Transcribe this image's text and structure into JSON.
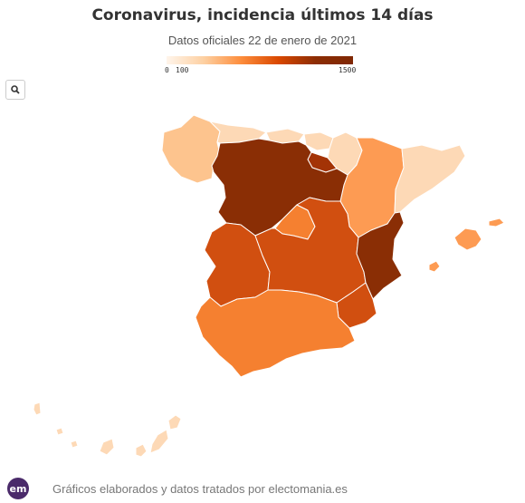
{
  "title": "Coronavirus, incidencia últimos 14 días",
  "subtitle": "Datos oficiales 22 de enero de 2021",
  "legend": {
    "min_label": "0",
    "mid_label": "100",
    "max_label": "1500"
  },
  "search": {
    "icon": "search-icon"
  },
  "footer": {
    "logo_text": "em",
    "credit": "Gráficos elaborados y datos tratados por electomania.es"
  },
  "colors": {
    "very_low": "#fdd9b6",
    "low": "#fdc48e",
    "medium": "#fd9b53",
    "medium_high": "#f58030",
    "high": "#d14f10",
    "very_high": "#a33306",
    "extreme": "#8a2e05"
  }
}
